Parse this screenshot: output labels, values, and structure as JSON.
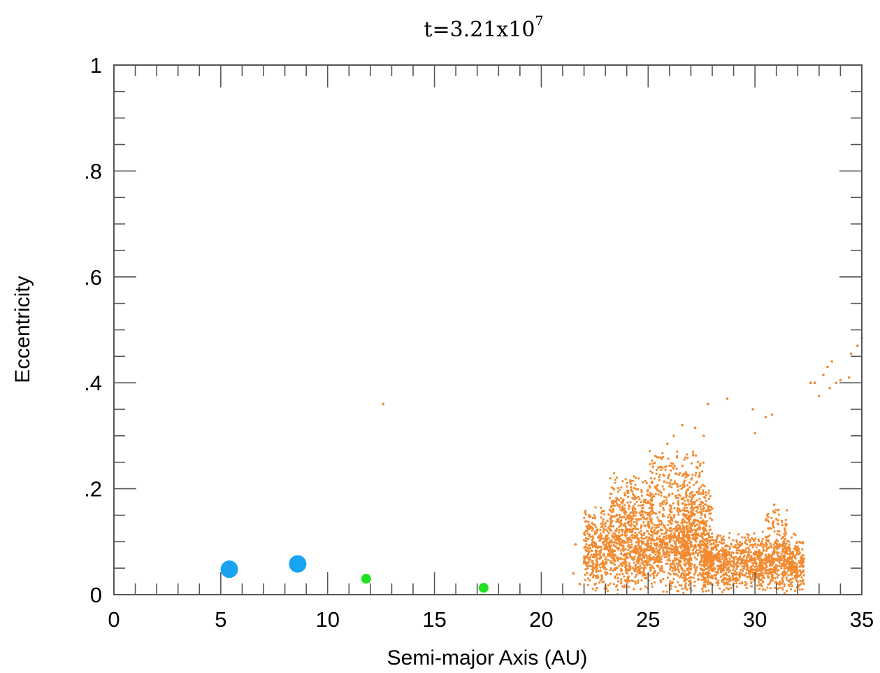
{
  "chart_data": {
    "type": "scatter",
    "title": "t=3.21x10",
    "title_exponent": "7",
    "xlabel": "Semi-major Axis (AU)",
    "ylabel": "Eccentricity",
    "xlim": [
      0,
      35
    ],
    "ylim": [
      0,
      1
    ],
    "x_ticks": [
      0,
      5,
      10,
      15,
      20,
      25,
      30,
      35
    ],
    "x_tick_labels": [
      "0",
      "5",
      "10",
      "15",
      "20",
      "25",
      "30",
      "35"
    ],
    "y_ticks": [
      0,
      0.2,
      0.4,
      0.6,
      0.8,
      1
    ],
    "y_tick_labels": [
      "0",
      ".2",
      ".4",
      ".6",
      ".8",
      "1"
    ],
    "grid": false,
    "legend": "none",
    "series": [
      {
        "kind": "giant-planets",
        "color": "#1aa3f0",
        "points": [
          [
            5.4,
            0.048
          ],
          [
            8.6,
            0.058
          ]
        ]
      },
      {
        "kind": "ice-giants",
        "color": "#22e022",
        "points": [
          [
            11.8,
            0.03
          ],
          [
            17.3,
            0.013
          ]
        ]
      },
      {
        "kind": "planetesimals",
        "color": "#f28a30",
        "points": [
          [
            12.6,
            0.36
          ],
          [
            21.5,
            0.04
          ],
          [
            21.6,
            0.095
          ],
          [
            21.8,
            0.02
          ],
          [
            27.8,
            0.36
          ],
          [
            28.7,
            0.37
          ],
          [
            29.9,
            0.35
          ],
          [
            30.0,
            0.305
          ],
          [
            30.5,
            0.335
          ],
          [
            30.8,
            0.34
          ],
          [
            32.6,
            0.4
          ],
          [
            32.8,
            0.4
          ],
          [
            33.0,
            0.375
          ],
          [
            33.2,
            0.415
          ],
          [
            33.4,
            0.43
          ],
          [
            33.5,
            0.39
          ],
          [
            33.6,
            0.44
          ],
          [
            33.8,
            0.4
          ],
          [
            34.0,
            0.405
          ],
          [
            34.4,
            0.41
          ],
          [
            34.5,
            0.455
          ],
          [
            34.8,
            0.47
          ],
          [
            35.0,
            0.485
          ],
          [
            25.4,
            0.26
          ],
          [
            26.2,
            0.3
          ],
          [
            26.6,
            0.32
          ],
          [
            27.2,
            0.315
          ],
          [
            27.6,
            0.3
          ],
          [
            25.9,
            0.285
          ],
          [
            30.9,
            0.17
          ],
          [
            31.1,
            0.16
          ]
        ],
        "clusters": [
          {
            "x_range": [
              22.0,
              27.0
            ],
            "e_range": [
              0.0,
              0.17
            ],
            "count": 1400
          },
          {
            "x_range": [
              23.2,
              25.2
            ],
            "e_range": [
              0.1,
              0.24
            ],
            "count": 220
          },
          {
            "x_range": [
              25.0,
              27.6
            ],
            "e_range": [
              0.12,
              0.28
            ],
            "count": 220
          },
          {
            "x_range": [
              26.6,
              28.0
            ],
            "e_range": [
              0.0,
              0.22
            ],
            "count": 480
          },
          {
            "x_range": [
              27.5,
              32.3
            ],
            "e_range": [
              0.0,
              0.12
            ],
            "count": 1200
          },
          {
            "x_range": [
              30.5,
              31.5
            ],
            "e_range": [
              0.08,
              0.17
            ],
            "count": 60
          }
        ]
      }
    ]
  }
}
